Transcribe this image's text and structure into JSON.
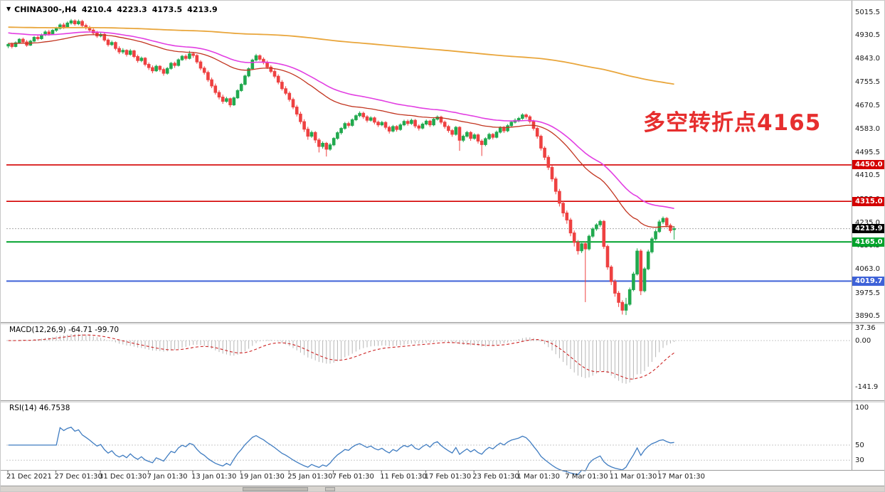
{
  "header": {
    "dropdown_icon": "▼",
    "symbol": "CHINA300-,H4",
    "open": "4210.4",
    "high": "4223.3",
    "low": "4173.5",
    "close": "4213.9"
  },
  "annotation": {
    "text": "多空转折点4165",
    "color": "#e62e2e"
  },
  "price_axis": {
    "ticks": [
      5015.5,
      4930.5,
      4843.0,
      4755.5,
      4670.5,
      4583.0,
      4495.5,
      4410.5,
      4323.0,
      4235.0,
      4150.5,
      4063.0,
      3975.5,
      3890.5
    ]
  },
  "levels": [
    {
      "label": "4450.0",
      "price": 4450.0,
      "color": "#d40000",
      "line_style": "solid",
      "line_width": 1.6
    },
    {
      "label": "4315.0",
      "price": 4315.0,
      "color": "#d40000",
      "line_style": "solid",
      "line_width": 1.6
    },
    {
      "label": "4213.9",
      "price": 4213.9,
      "color": "#000000",
      "line_style": "dotted",
      "line_width": 1,
      "line_color": "#a8a8a8",
      "role": "current-price"
    },
    {
      "label": "4165.0",
      "price": 4165.0,
      "color": "#00a22b",
      "line_style": "solid",
      "line_width": 2
    },
    {
      "label": "4019.7",
      "price": 4019.7,
      "color": "#3e62d8",
      "line_style": "solid",
      "line_width": 2
    }
  ],
  "moving_averages": [
    {
      "period": 40,
      "color": "#c2341f",
      "width": 1.3,
      "seed": 4900
    },
    {
      "period": 60,
      "color": "#e23ee2",
      "width": 1.6,
      "seed": 4940
    },
    {
      "period": 480,
      "color": "#e9a63c",
      "width": 1.8,
      "seed": 4960
    }
  ],
  "indicators": {
    "macd": {
      "label": "MACD(12,26,9) -64.71 -99.70",
      "fast": 12,
      "slow": 26,
      "signal": 9,
      "main_value": -64.71,
      "signal_value": -99.7,
      "scale_ticks": [
        "37.36",
        "0.00",
        "-141.9"
      ],
      "scale_values": [
        37.36,
        0,
        -141.9
      ],
      "histogram_color": "#b6b6b6",
      "signal_color": "#cc2222"
    },
    "rsi": {
      "label": "RSI(14) 46.7538",
      "period": 14,
      "value": 46.7538,
      "scale_ticks": [
        "100",
        "50",
        "30"
      ],
      "scale_values": [
        100,
        50,
        30
      ],
      "level_lines": [
        50,
        30
      ],
      "line_color": "#3f7cc1"
    }
  },
  "time_axis": [
    {
      "label": "21 Dec 2021",
      "index": 0
    },
    {
      "label": "27 Dec 01:30",
      "index": 13
    },
    {
      "label": "31 Dec 01:30",
      "index": 25
    },
    {
      "label": "7 Jan 01:30",
      "index": 38
    },
    {
      "label": "13 Jan 01:30",
      "index": 50
    },
    {
      "label": "19 Jan 01:30",
      "index": 63
    },
    {
      "label": "25 Jan 01:30",
      "index": 76
    },
    {
      "label": "7 Feb 01:30",
      "index": 88
    },
    {
      "label": "11 Feb 01:30",
      "index": 101
    },
    {
      "label": "17 Feb 01:30",
      "index": 113
    },
    {
      "label": "23 Feb 01:30",
      "index": 126
    },
    {
      "label": "1 Mar 01:30",
      "index": 138
    },
    {
      "label": "7 Mar 01:30",
      "index": 151
    },
    {
      "label": "11 Mar 01:30",
      "index": 163
    },
    {
      "label": "17 Mar 01:30",
      "index": 176
    }
  ],
  "chart_data": {
    "type": "candlestick",
    "symbol": "CHINA300-",
    "timeframe": "H4",
    "title": "CHINA300-,H4 4210.4 4223.3 4173.5 4213.9",
    "last_ohlc": {
      "open": 4210.4,
      "high": 4223.3,
      "low": 4173.5,
      "close": 4213.9
    },
    "price_range_visible": [
      3890.5,
      5015.5
    ],
    "up_color": "#21a94e",
    "down_color": "#ee4141",
    "candles": [
      [
        4890,
        4901,
        4882,
        4896
      ],
      [
        4896,
        4903,
        4881,
        4888
      ],
      [
        4888,
        4907,
        4885,
        4902
      ],
      [
        4902,
        4919,
        4898,
        4915
      ],
      [
        4915,
        4921,
        4899,
        4905
      ],
      [
        4905,
        4912,
        4887,
        4893
      ],
      [
        4893,
        4913,
        4890,
        4908
      ],
      [
        4908,
        4927,
        4905,
        4922
      ],
      [
        4922,
        4929,
        4910,
        4917
      ],
      [
        4917,
        4936,
        4913,
        4931
      ],
      [
        4931,
        4948,
        4927,
        4942
      ],
      [
        4942,
        4950,
        4928,
        4935
      ],
      [
        4935,
        4953,
        4931,
        4948
      ],
      [
        4948,
        4961,
        4942,
        4955
      ],
      [
        4955,
        4974,
        4951,
        4968
      ],
      [
        4968,
        4976,
        4953,
        4960
      ],
      [
        4960,
        4981,
        4956,
        4975
      ],
      [
        4975,
        4990,
        4969,
        4983
      ],
      [
        4983,
        4989,
        4965,
        4972
      ],
      [
        4972,
        4988,
        4967,
        4981
      ],
      [
        4981,
        4987,
        4960,
        4966
      ],
      [
        4966,
        4973,
        4951,
        4958
      ],
      [
        4958,
        4965,
        4942,
        4949
      ],
      [
        4949,
        4956,
        4931,
        4938
      ],
      [
        4938,
        4946,
        4920,
        4927
      ],
      [
        4927,
        4941,
        4922,
        4933
      ],
      [
        4933,
        4939,
        4906,
        4912
      ],
      [
        4912,
        4918,
        4888,
        4895
      ],
      [
        4895,
        4910,
        4890,
        4903
      ],
      [
        4903,
        4907,
        4874,
        4881
      ],
      [
        4881,
        4889,
        4860,
        4868
      ],
      [
        4868,
        4882,
        4861,
        4874
      ],
      [
        4874,
        4878,
        4851,
        4859
      ],
      [
        4859,
        4879,
        4854,
        4872
      ],
      [
        4872,
        4876,
        4845,
        4851
      ],
      [
        4851,
        4858,
        4828,
        4836
      ],
      [
        4836,
        4851,
        4830,
        4845
      ],
      [
        4845,
        4849,
        4815,
        4822
      ],
      [
        4822,
        4829,
        4801,
        4810
      ],
      [
        4810,
        4818,
        4789,
        4798
      ],
      [
        4798,
        4821,
        4794,
        4815
      ],
      [
        4815,
        4819,
        4795,
        4803
      ],
      [
        4803,
        4810,
        4780,
        4789
      ],
      [
        4789,
        4812,
        4784,
        4807
      ],
      [
        4807,
        4831,
        4802,
        4826
      ],
      [
        4826,
        4832,
        4809,
        4818
      ],
      [
        4818,
        4844,
        4814,
        4839
      ],
      [
        4839,
        4857,
        4835,
        4852
      ],
      [
        4852,
        4859,
        4837,
        4844
      ],
      [
        4844,
        4872,
        4840,
        4861
      ],
      [
        4861,
        4868,
        4846,
        4855
      ],
      [
        4855,
        4860,
        4824,
        4831
      ],
      [
        4831,
        4838,
        4800,
        4808
      ],
      [
        4808,
        4815,
        4784,
        4792
      ],
      [
        4792,
        4799,
        4757,
        4765
      ],
      [
        4765,
        4773,
        4734,
        4742
      ],
      [
        4742,
        4751,
        4710,
        4718
      ],
      [
        4718,
        4726,
        4692,
        4701
      ],
      [
        4701,
        4710,
        4676,
        4685
      ],
      [
        4685,
        4702,
        4680,
        4695
      ],
      [
        4695,
        4699,
        4663,
        4672
      ],
      [
        4672,
        4703,
        4668,
        4698
      ],
      [
        4698,
        4730,
        4694,
        4725
      ],
      [
        4725,
        4753,
        4720,
        4748
      ],
      [
        4748,
        4784,
        4744,
        4779
      ],
      [
        4779,
        4811,
        4774,
        4806
      ],
      [
        4806,
        4843,
        4801,
        4838
      ],
      [
        4838,
        4861,
        4833,
        4854
      ],
      [
        4854,
        4859,
        4835,
        4841
      ],
      [
        4841,
        4848,
        4822,
        4829
      ],
      [
        4829,
        4836,
        4805,
        4812
      ],
      [
        4812,
        4819,
        4789,
        4796
      ],
      [
        4796,
        4804,
        4770,
        4778
      ],
      [
        4778,
        4785,
        4748,
        4756
      ],
      [
        4756,
        4764,
        4725,
        4732
      ],
      [
        4732,
        4741,
        4708,
        4715
      ],
      [
        4715,
        4722,
        4684,
        4692
      ],
      [
        4692,
        4699,
        4656,
        4664
      ],
      [
        4664,
        4672,
        4629,
        4638
      ],
      [
        4638,
        4647,
        4601,
        4610
      ],
      [
        4610,
        4619,
        4572,
        4582
      ],
      [
        4582,
        4591,
        4543,
        4556
      ],
      [
        4556,
        4577,
        4550,
        4570
      ],
      [
        4570,
        4575,
        4531,
        4542
      ],
      [
        4542,
        4549,
        4496,
        4518
      ],
      [
        4518,
        4537,
        4510,
        4530
      ],
      [
        4530,
        4535,
        4481,
        4508
      ],
      [
        4508,
        4531,
        4502,
        4524
      ],
      [
        4524,
        4553,
        4519,
        4548
      ],
      [
        4548,
        4574,
        4543,
        4569
      ],
      [
        4569,
        4590,
        4562,
        4585
      ],
      [
        4585,
        4609,
        4580,
        4603
      ],
      [
        4603,
        4610,
        4588,
        4596
      ],
      [
        4596,
        4622,
        4591,
        4617
      ],
      [
        4617,
        4637,
        4612,
        4632
      ],
      [
        4632,
        4648,
        4626,
        4641
      ],
      [
        4641,
        4647,
        4620,
        4628
      ],
      [
        4628,
        4634,
        4607,
        4615
      ],
      [
        4615,
        4630,
        4610,
        4624
      ],
      [
        4624,
        4629,
        4600,
        4608
      ],
      [
        4608,
        4614,
        4590,
        4598
      ],
      [
        4598,
        4613,
        4593,
        4607
      ],
      [
        4607,
        4612,
        4581,
        4589
      ],
      [
        4589,
        4595,
        4566,
        4575
      ],
      [
        4575,
        4598,
        4570,
        4592
      ],
      [
        4592,
        4597,
        4573,
        4581
      ],
      [
        4581,
        4604,
        4576,
        4598
      ],
      [
        4598,
        4617,
        4593,
        4611
      ],
      [
        4611,
        4618,
        4595,
        4603
      ],
      [
        4603,
        4621,
        4598,
        4615
      ],
      [
        4615,
        4620,
        4586,
        4594
      ],
      [
        4594,
        4600,
        4577,
        4586
      ],
      [
        4586,
        4607,
        4581,
        4601
      ],
      [
        4601,
        4618,
        4596,
        4612
      ],
      [
        4612,
        4617,
        4590,
        4598
      ],
      [
        4598,
        4625,
        4593,
        4619
      ],
      [
        4619,
        4633,
        4614,
        4627
      ],
      [
        4627,
        4632,
        4600,
        4608
      ],
      [
        4608,
        4614,
        4584,
        4592
      ],
      [
        4592,
        4598,
        4569,
        4577
      ],
      [
        4577,
        4583,
        4554,
        4563
      ],
      [
        4563,
        4594,
        4558,
        4589
      ],
      [
        4589,
        4593,
        4502,
        4541
      ],
      [
        4541,
        4562,
        4534,
        4556
      ],
      [
        4556,
        4576,
        4551,
        4570
      ],
      [
        4570,
        4575,
        4539,
        4548
      ],
      [
        4548,
        4567,
        4543,
        4561
      ],
      [
        4561,
        4566,
        4529,
        4538
      ],
      [
        4538,
        4545,
        4483,
        4525
      ],
      [
        4525,
        4552,
        4519,
        4547
      ],
      [
        4547,
        4569,
        4542,
        4563
      ],
      [
        4563,
        4568,
        4544,
        4552
      ],
      [
        4552,
        4577,
        4548,
        4571
      ],
      [
        4571,
        4593,
        4566,
        4588
      ],
      [
        4588,
        4594,
        4568,
        4576
      ],
      [
        4576,
        4601,
        4571,
        4595
      ],
      [
        4595,
        4614,
        4590,
        4608
      ],
      [
        4608,
        4622,
        4603,
        4615
      ],
      [
        4615,
        4628,
        4608,
        4622
      ],
      [
        4622,
        4641,
        4617,
        4635
      ],
      [
        4635,
        4640,
        4620,
        4628
      ],
      [
        4628,
        4634,
        4603,
        4611
      ],
      [
        4611,
        4617,
        4577,
        4585
      ],
      [
        4585,
        4591,
        4547,
        4556
      ],
      [
        4556,
        4562,
        4503,
        4512
      ],
      [
        4512,
        4519,
        4468,
        4478
      ],
      [
        4478,
        4486,
        4431,
        4441
      ],
      [
        4441,
        4449,
        4388,
        4398
      ],
      [
        4398,
        4406,
        4341,
        4352
      ],
      [
        4352,
        4361,
        4296,
        4308
      ],
      [
        4308,
        4317,
        4258,
        4272
      ],
      [
        4272,
        4281,
        4232,
        4246
      ],
      [
        4246,
        4254,
        4186,
        4198
      ],
      [
        4198,
        4207,
        4148,
        4163
      ],
      [
        4163,
        4172,
        4118,
        4132
      ],
      [
        4132,
        4161,
        4124,
        4158
      ],
      [
        4158,
        4166,
        3942,
        4139
      ],
      [
        4139,
        4192,
        4133,
        4186
      ],
      [
        4186,
        4219,
        4180,
        4213
      ],
      [
        4213,
        4234,
        4206,
        4228
      ],
      [
        4228,
        4247,
        4220,
        4241
      ],
      [
        4241,
        4246,
        4139,
        4148
      ],
      [
        4148,
        4155,
        4062,
        4072
      ],
      [
        4072,
        4079,
        4005,
        4018
      ],
      [
        4018,
        4026,
        3962,
        3975
      ],
      [
        3975,
        3983,
        3924,
        3941
      ],
      [
        3941,
        3949,
        3896,
        3912
      ],
      [
        3912,
        3958,
        3894,
        3934
      ],
      [
        3934,
        3996,
        3928,
        3988
      ],
      [
        3988,
        4054,
        3982,
        4046
      ],
      [
        4046,
        4141,
        4040,
        4131
      ],
      [
        4131,
        4138,
        3968,
        3984
      ],
      [
        3984,
        4072,
        3978,
        4065
      ],
      [
        4065,
        4136,
        4060,
        4128
      ],
      [
        4128,
        4183,
        4122,
        4176
      ],
      [
        4176,
        4211,
        4170,
        4203
      ],
      [
        4203,
        4247,
        4198,
        4239
      ],
      [
        4239,
        4259,
        4231,
        4252
      ],
      [
        4252,
        4257,
        4219,
        4226
      ],
      [
        4226,
        4233,
        4198,
        4207
      ],
      [
        4210.4,
        4223.3,
        4173.5,
        4213.9
      ]
    ]
  }
}
